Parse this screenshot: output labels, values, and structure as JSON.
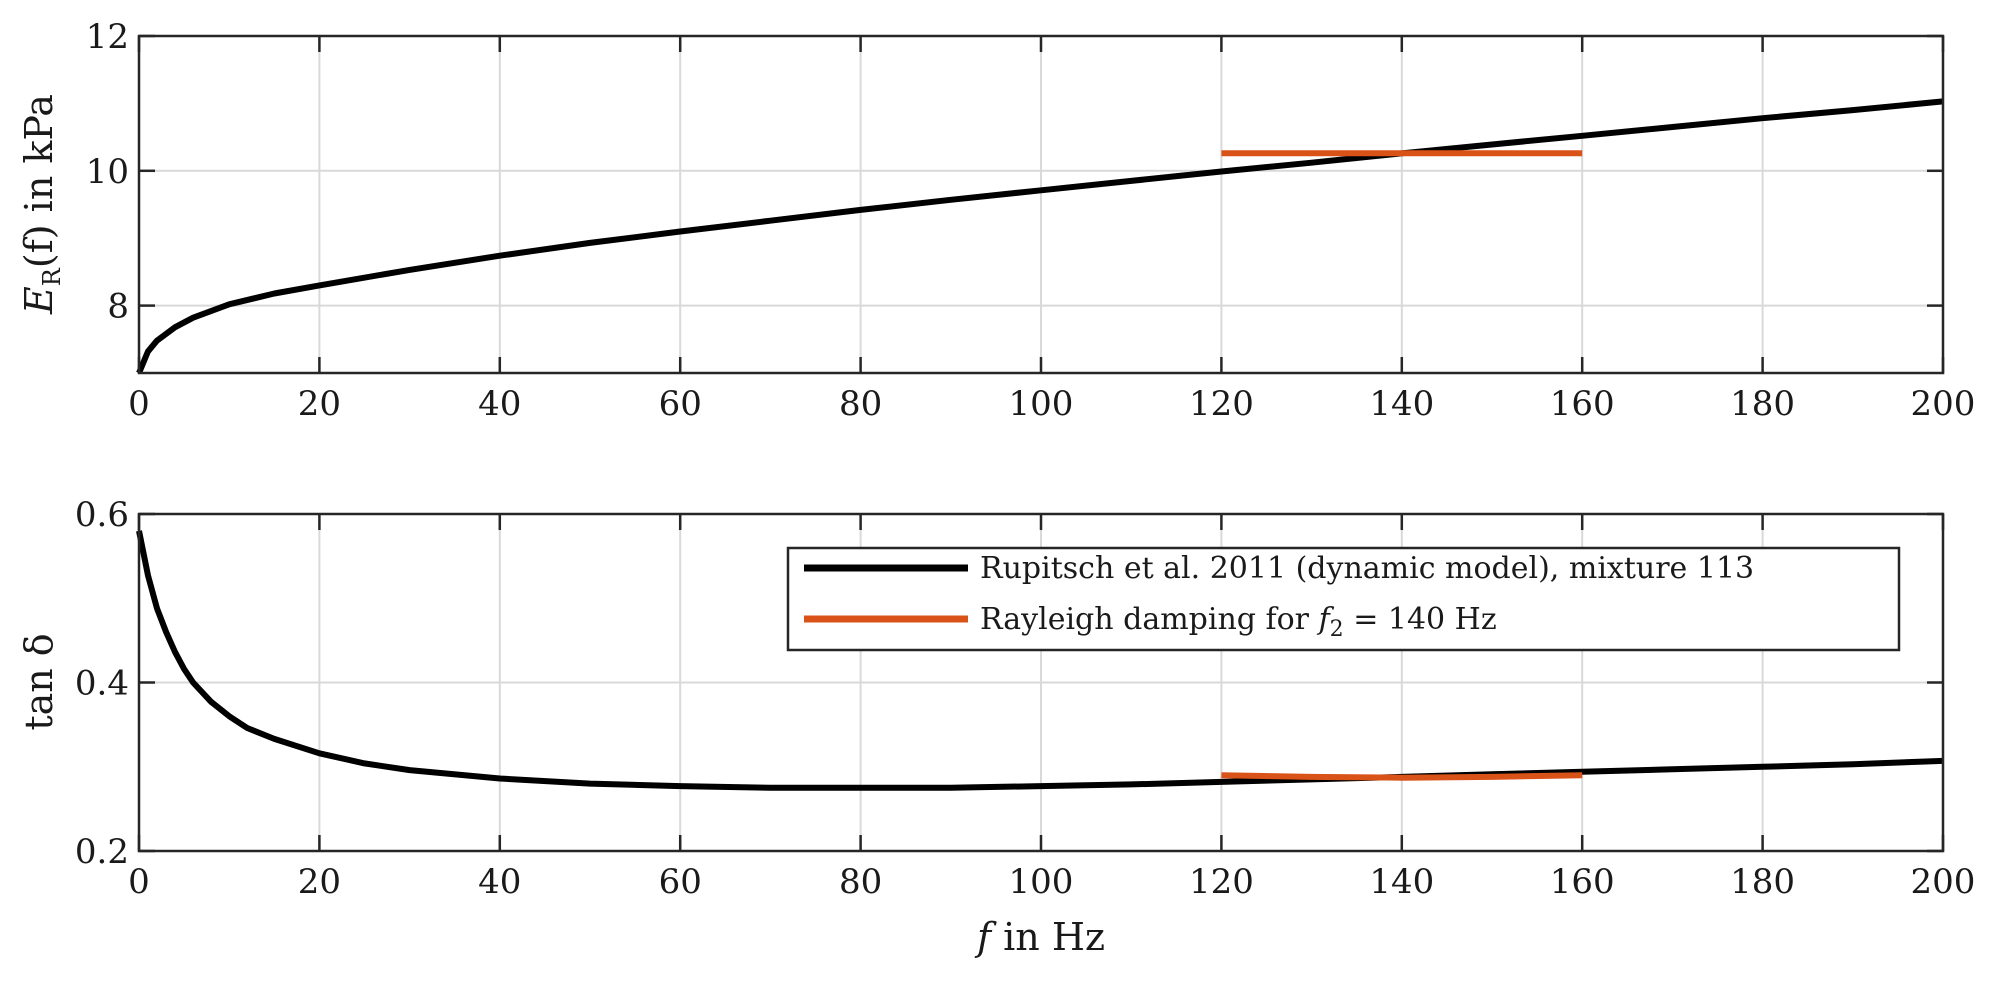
{
  "colors": {
    "model": "#000000",
    "rayleigh": "#d95319"
  },
  "chart_data": [
    {
      "type": "line",
      "xlim": [
        0,
        200
      ],
      "ylim": [
        7,
        12
      ],
      "xticks": [
        "0",
        "20",
        "40",
        "60",
        "80",
        "100",
        "120",
        "140",
        "160",
        "180",
        "200"
      ],
      "yticks": [
        "8",
        "10",
        "12"
      ],
      "ylabel_main": "E",
      "ylabel_sub": "R",
      "ylabel_rest": "(f) in kPa",
      "grid": true,
      "series": [
        {
          "name": "Rupitsch et al. 2011 (dynamic model), mixture 113",
          "x": [
            0,
            1,
            2,
            4,
            6,
            10,
            15,
            20,
            30,
            40,
            50,
            60,
            70,
            80,
            90,
            100,
            110,
            120,
            130,
            140,
            150,
            160,
            170,
            180,
            190,
            200
          ],
          "y": [
            7.0,
            7.32,
            7.48,
            7.68,
            7.82,
            8.02,
            8.18,
            8.3,
            8.53,
            8.74,
            8.93,
            9.1,
            9.26,
            9.42,
            9.57,
            9.71,
            9.85,
            9.99,
            10.12,
            10.26,
            10.39,
            10.52,
            10.65,
            10.78,
            10.9,
            11.03
          ]
        },
        {
          "name": "Rayleigh damping for f2 = 140 Hz",
          "x": [
            120,
            160
          ],
          "y": [
            10.26,
            10.26
          ]
        }
      ]
    },
    {
      "type": "line",
      "xlim": [
        0,
        200
      ],
      "ylim": [
        0.2,
        0.6
      ],
      "xticks": [
        "0",
        "20",
        "40",
        "60",
        "80",
        "100",
        "120",
        "140",
        "160",
        "180",
        "200"
      ],
      "yticks": [
        "0.2",
        "0.4",
        "0.6"
      ],
      "ylabel": "tan δ",
      "xlabel_var": "f",
      "xlabel_rest": " in Hz",
      "grid": true,
      "series": [
        {
          "name": "Rupitsch et al. 2011 (dynamic model), mixture 113",
          "x": [
            0,
            1,
            2,
            3,
            4,
            5,
            6,
            8,
            10,
            12,
            15,
            20,
            25,
            30,
            40,
            50,
            60,
            70,
            80,
            90,
            100,
            110,
            120,
            130,
            140,
            150,
            160,
            170,
            180,
            190,
            200
          ],
          "y": [
            0.58,
            0.527,
            0.488,
            0.46,
            0.436,
            0.416,
            0.4,
            0.377,
            0.36,
            0.346,
            0.333,
            0.316,
            0.304,
            0.296,
            0.286,
            0.28,
            0.277,
            0.275,
            0.275,
            0.275,
            0.277,
            0.279,
            0.282,
            0.285,
            0.288,
            0.291,
            0.294,
            0.297,
            0.3,
            0.303,
            0.307
          ]
        },
        {
          "name": "Rayleigh damping for f2 = 140 Hz",
          "x": [
            120,
            130,
            140,
            150,
            160
          ],
          "y": [
            0.29,
            0.288,
            0.287,
            0.288,
            0.29
          ]
        }
      ],
      "legend": {
        "placement": "top-right",
        "entries": [
          {
            "text": "Rupitsch et al. 2011 (dynamic model), mixture 113"
          },
          {
            "prefix": "Rayleigh damping for ",
            "var": "f",
            "sub": "2",
            "suffix": " = 140 Hz"
          }
        ]
      }
    }
  ]
}
